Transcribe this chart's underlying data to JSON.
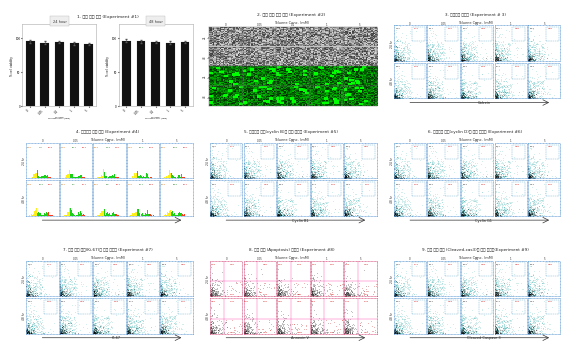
{
  "background_color": "#ffffff",
  "panel_titles": [
    "1. 세포 성장 확인 (Experiment #1)",
    "2. 세포 모형 변화 관찰 (Experiment #2)",
    "3. 세포사멸 정량화 (Experiment # 3)",
    "4. 세포주기 분포 확인 (Experiment #4)",
    "5. 세포주기 마커(cyclin B)의 발현 정량화 (Experiment #5)",
    "6. 세포주기 마커(cyclin D)의 발현 정량화 (Experiment #6)",
    "7. 세포 분열 마커(Ki-67)의 발현 정량화 (Experiment #7)",
    "8. 세포 자살 (Apoptosis) 정량화 (Experiment #8)",
    "9. 세포 자살 마커 (Cleaved-cas3)의 발현 정량화(Experiment #9)"
  ],
  "conc_labels": [
    "0",
    "0.05",
    "0.1",
    "1",
    "5"
  ],
  "toluene_label": "Toluene Conc. (mM)",
  "bar_data_24h": [
    95,
    93,
    94,
    92,
    91
  ],
  "bar_data_48h": [
    96,
    95,
    94,
    93,
    94
  ],
  "bar_color": "#111111",
  "xlabels": [
    "Calcein",
    "Cyclin B1",
    "Cyclin G1",
    "Ki-67",
    "Annexin V",
    "Cleaved Caspase 3"
  ]
}
